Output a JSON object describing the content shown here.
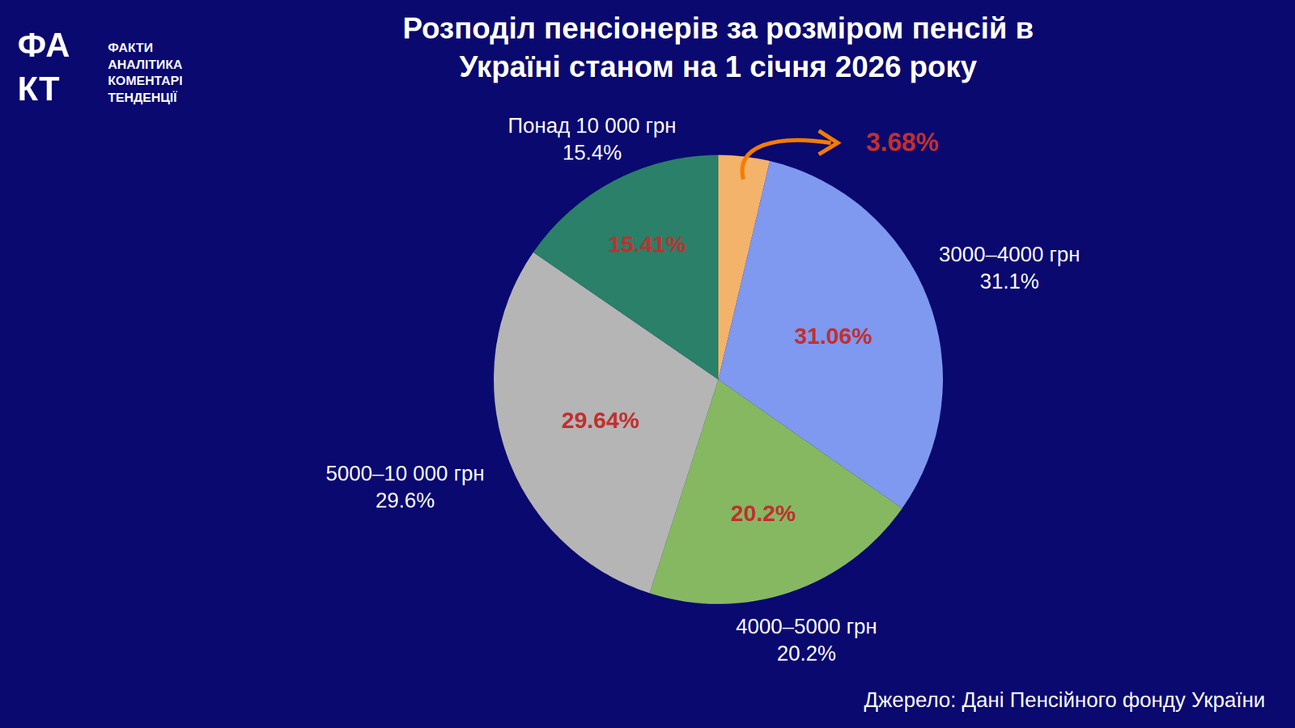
{
  "chart_data": {
    "type": "pie",
    "title": "Розподіл пенсіонерів за розміром пенсій в Україні станом на 1 січня 2026 року",
    "categories": [
      null,
      "3000–4000 грн",
      "4000–5000 грн",
      "5000–10 000 грн",
      "Понад 10 000 грн"
    ],
    "category_labels": [
      null,
      "31.1%",
      "20.2%",
      "29.6%",
      "15.4%"
    ],
    "values": [
      3.68,
      31.06,
      20.2,
      29.64,
      15.41
    ],
    "value_labels": [
      "3.68%",
      "31.06%",
      "20.2%",
      "29.64%",
      "15.41%"
    ],
    "colors": [
      "#f4b36b",
      "#7f98f0",
      "#86b862",
      "#b5b5b5",
      "#2a8068"
    ],
    "data_labels": true,
    "source": "Джерело: Дані Пенсійного фонду України"
  },
  "logo": {
    "mark": [
      "ФА",
      "КТ"
    ],
    "lines": [
      "ФАКТИ",
      "АНАЛІТИКА",
      "КОМЕНТАРІ",
      "ТЕНДЕНЦІЇ"
    ]
  }
}
